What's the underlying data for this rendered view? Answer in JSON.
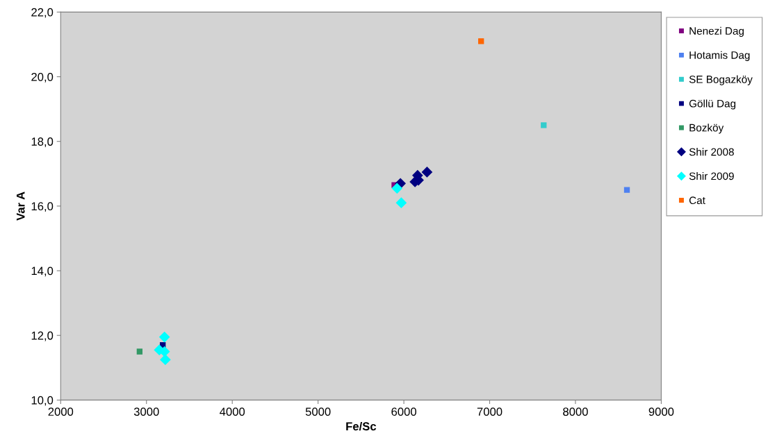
{
  "chart_data": {
    "type": "scatter",
    "xlabel": "Fe/Sc",
    "ylabel": "Var A",
    "xlim": [
      2000,
      9000
    ],
    "xticks": [
      2000,
      3000,
      4000,
      5000,
      6000,
      7000,
      8000,
      9000
    ],
    "ylim": [
      10,
      22
    ],
    "yticks": [
      {
        "value": 10,
        "label": "10,0"
      },
      {
        "value": 12,
        "label": "12,0"
      },
      {
        "value": 14,
        "label": "14,0"
      },
      {
        "value": 16,
        "label": "16,0"
      },
      {
        "value": 18,
        "label": "18,0"
      },
      {
        "value": 20,
        "label": "20,0"
      },
      {
        "value": 22,
        "label": "22,0"
      }
    ],
    "grid": false,
    "legend": "right",
    "series": [
      {
        "name": "Nenezi Dag",
        "color": "#800080",
        "marker": "square",
        "x": [
          5890
        ],
        "values": [
          16.65
        ]
      },
      {
        "name": "Hotamis Dag",
        "color": "#4f81f0",
        "marker": "square",
        "x": [
          8600
        ],
        "values": [
          16.5
        ]
      },
      {
        "name": "SE Bogazköy",
        "color": "#33cccc",
        "marker": "square",
        "x": [
          7630
        ],
        "values": [
          18.5
        ]
      },
      {
        "name": "Göllü Dag",
        "color": "#000080",
        "marker": "square",
        "x": [
          3190
        ],
        "values": [
          11.7
        ]
      },
      {
        "name": "Bozköy",
        "color": "#339966",
        "marker": "square",
        "x": [
          2920
        ],
        "values": [
          11.5
        ]
      },
      {
        "name": "Shir 2008",
        "color": "#000080",
        "marker": "diamond",
        "x": [
          5960,
          6130,
          6170,
          6160,
          6270
        ],
        "values": [
          16.7,
          16.75,
          16.8,
          16.95,
          17.05
        ]
      },
      {
        "name": "Shir 2009",
        "color": "#00ffff",
        "marker": "diamond",
        "x": [
          5920,
          5970,
          3150,
          3210,
          3220,
          3210
        ],
        "values": [
          16.55,
          16.1,
          11.55,
          11.5,
          11.25,
          11.95
        ]
      },
      {
        "name": "Cat",
        "color": "#ff6600",
        "marker": "square",
        "x": [
          6900
        ],
        "values": [
          21.1
        ]
      }
    ]
  }
}
